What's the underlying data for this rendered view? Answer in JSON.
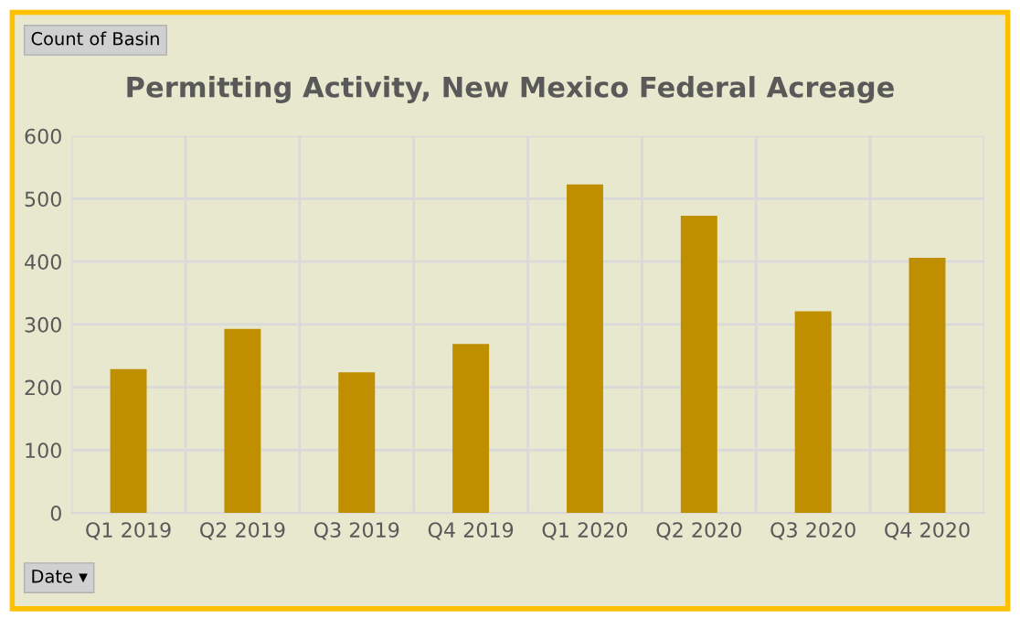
{
  "chart_data": {
    "type": "bar",
    "title": "Permitting Activity, New Mexico Federal Acreage",
    "annotations": [
      "Count of Basin",
      "Date ▾"
    ],
    "categories": [
      "Q1 2019",
      "Q2 2019",
      "Q3 2019",
      "Q4 2019",
      "Q1 2020",
      "Q2 2020",
      "Q3 2020",
      "Q4 2020"
    ],
    "values": [
      229,
      293,
      224,
      269,
      523,
      473,
      321,
      406
    ],
    "color": "#bf8f00",
    "ylim": [
      0,
      600
    ],
    "yticks": [
      0,
      100,
      200,
      300,
      400,
      500,
      600
    ],
    "grid": true,
    "legend": false
  }
}
